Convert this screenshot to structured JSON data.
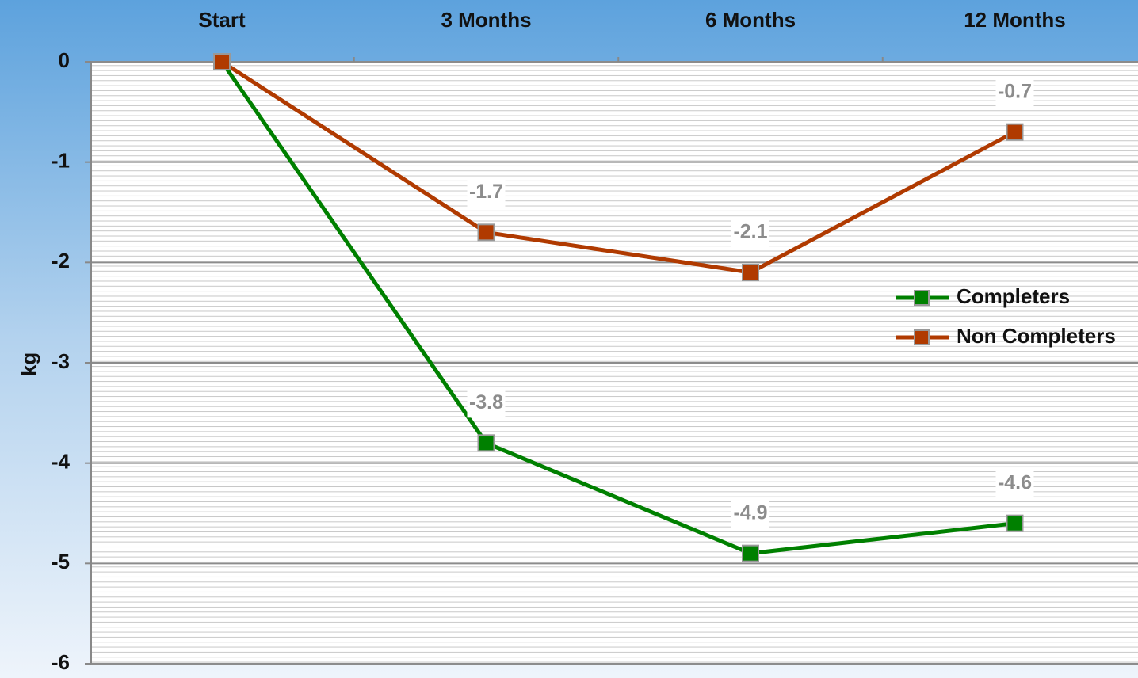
{
  "chart_data": {
    "type": "line",
    "y_label": "kg",
    "categories": [
      "Start",
      "3 Months",
      "6 Months",
      "12 Months"
    ],
    "series": [
      {
        "name": "Completers",
        "color": "#008000",
        "values": [
          0,
          -3.8,
          -4.9,
          -4.6
        ],
        "value_labels": [
          null,
          "-3.8",
          "-4.9",
          "-4.6"
        ]
      },
      {
        "name": "Non Completers",
        "color": "#b03a00",
        "values": [
          0,
          -1.7,
          -2.1,
          -0.7
        ],
        "value_labels": [
          null,
          "-1.7",
          "-2.1",
          "-0.7"
        ]
      }
    ],
    "ylim": [
      -6,
      0
    ],
    "yticks": [
      0,
      -1,
      -2,
      -3,
      -4,
      -5,
      -6
    ],
    "grid": true,
    "legend": "right"
  }
}
